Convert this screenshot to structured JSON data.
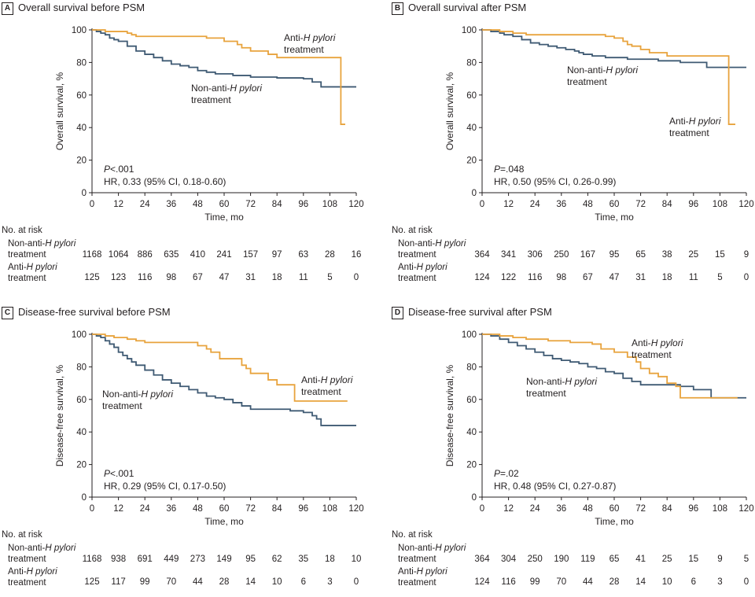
{
  "chart_data": [
    {
      "type": "line",
      "panel_letter": "A",
      "title": "Overall survival before PSM",
      "xlabel": "Time, mo",
      "ylabel": "Overall survival, %",
      "xlim": [
        0,
        120
      ],
      "ylim": [
        0,
        100
      ],
      "xticks": [
        "0",
        "12",
        "24",
        "36",
        "48",
        "60",
        "72",
        "84",
        "96",
        "108",
        "120"
      ],
      "yticks": [
        "0",
        "20",
        "40",
        "60",
        "80",
        "100"
      ],
      "stats": {
        "p": "P<.001",
        "hr": "HR, 0.33 (95% CI, 0.18-0.60)"
      },
      "series": [
        {
          "name": "Non-anti-H pylori treatment",
          "label_line1_prefix": "Non-anti-",
          "label_line1_italic": "H pylori",
          "label_line2": "treatment",
          "color": "#3f5a73",
          "x": [
            0,
            2,
            4,
            6,
            8,
            10,
            12,
            16,
            20,
            24,
            28,
            32,
            36,
            40,
            44,
            48,
            52,
            56,
            60,
            64,
            68,
            72,
            78,
            84,
            90,
            96,
            100,
            102,
            104,
            108,
            112,
            120
          ],
          "y": [
            100,
            99,
            98,
            97,
            95,
            94,
            93,
            90,
            87,
            85,
            83,
            81,
            79,
            78,
            77,
            75,
            74,
            73,
            73,
            72,
            72,
            71,
            71,
            70.5,
            70.5,
            70,
            68,
            68,
            65,
            65,
            65,
            65
          ]
        },
        {
          "name": "Anti-H pylori treatment",
          "label_line1_prefix": "Anti-",
          "label_line1_italic": "H pylori",
          "label_line2": "treatment",
          "color": "#e8a33d",
          "x": [
            0,
            6,
            16,
            18,
            20,
            24,
            48,
            52,
            56,
            60,
            66,
            68,
            70,
            72,
            78,
            80,
            84,
            90,
            96,
            100,
            104,
            108,
            112,
            113,
            113,
            115
          ],
          "y": [
            100,
            99,
            98,
            97,
            96,
            96,
            96,
            95,
            95,
            93,
            91,
            89,
            89,
            87,
            87,
            85,
            83,
            83,
            83,
            83,
            83,
            83,
            83,
            83,
            42,
            42
          ]
        }
      ],
      "risk_table": {
        "title": "No. at risk",
        "rows": [
          {
            "label_prefix": "Non-anti-",
            "label_italic": "H pylori",
            "label_line2": "treatment",
            "values": [
              "1168",
              "1064",
              "886",
              "635",
              "410",
              "241",
              "157",
              "97",
              "63",
              "28",
              "16"
            ]
          },
          {
            "label_prefix": "Anti-",
            "label_italic": "H pylori",
            "label_line2": "treatment",
            "values": [
              "125",
              "123",
              "116",
              "98",
              "67",
              "47",
              "31",
              "18",
              "11",
              "5",
              "0"
            ]
          }
        ]
      }
    },
    {
      "type": "line",
      "panel_letter": "B",
      "title": "Overall survival after PSM",
      "xlabel": "Time, mo",
      "ylabel": "Overall survival, %",
      "xlim": [
        0,
        120
      ],
      "ylim": [
        0,
        100
      ],
      "xticks": [
        "0",
        "12",
        "24",
        "36",
        "48",
        "60",
        "72",
        "84",
        "96",
        "108",
        "120"
      ],
      "yticks": [
        "0",
        "20",
        "40",
        "60",
        "80",
        "100"
      ],
      "stats": {
        "p": "P=.048",
        "hr": "HR, 0.50 (95% CI, 0.26-0.99)"
      },
      "series": [
        {
          "name": "Non-anti-H pylori treatment",
          "label_line1_prefix": "Non-anti-",
          "label_line1_italic": "H pylori",
          "label_line2": "treatment",
          "color": "#3f5a73",
          "x": [
            0,
            4,
            8,
            10,
            14,
            18,
            22,
            26,
            30,
            34,
            38,
            42,
            44,
            46,
            50,
            54,
            56,
            60,
            66,
            72,
            80,
            84,
            90,
            96,
            100,
            102,
            108,
            112,
            120
          ],
          "y": [
            100,
            99,
            98,
            97,
            96,
            94,
            92,
            91,
            90,
            89,
            88,
            87,
            86,
            85,
            84,
            84,
            83,
            83,
            82,
            82,
            81,
            81,
            80,
            80,
            80,
            77,
            77,
            77,
            77
          ]
        },
        {
          "name": "Anti-H pylori treatment",
          "label_line1_prefix": "Anti-",
          "label_line1_italic": "H pylori",
          "label_line2": "treatment",
          "color": "#e8a33d",
          "x": [
            0,
            8,
            14,
            20,
            24,
            50,
            56,
            60,
            64,
            66,
            68,
            72,
            76,
            80,
            84,
            96,
            104,
            110,
            112,
            112,
            115
          ],
          "y": [
            100,
            99,
            98,
            97,
            97,
            97,
            96,
            95,
            93,
            91,
            90,
            88,
            86,
            86,
            84,
            84,
            84,
            84,
            84,
            42,
            42
          ]
        }
      ],
      "risk_table": {
        "title": "No. at risk",
        "rows": [
          {
            "label_prefix": "Non-anti-",
            "label_italic": "H pylori",
            "label_line2": "treatment",
            "values": [
              "364",
              "341",
              "306",
              "250",
              "167",
              "95",
              "65",
              "38",
              "25",
              "15",
              "9"
            ]
          },
          {
            "label_prefix": "Anti-",
            "label_italic": "H pylori",
            "label_line2": "treatment",
            "values": [
              "124",
              "122",
              "116",
              "98",
              "67",
              "47",
              "31",
              "18",
              "11",
              "5",
              "0"
            ]
          }
        ]
      }
    },
    {
      "type": "line",
      "panel_letter": "C",
      "title": "Disease-free survival before PSM",
      "xlabel": "Time, mo",
      "ylabel": "Disease-free survival, %",
      "xlim": [
        0,
        120
      ],
      "ylim": [
        0,
        100
      ],
      "xticks": [
        "0",
        "12",
        "24",
        "36",
        "48",
        "60",
        "72",
        "84",
        "96",
        "108",
        "120"
      ],
      "yticks": [
        "0",
        "20",
        "40",
        "60",
        "80",
        "100"
      ],
      "stats": {
        "p": "P<.001",
        "hr": "HR, 0.29 (95% CI, 0.17-0.50)"
      },
      "series": [
        {
          "name": "Non-anti-H pylori treatment",
          "label_line1_prefix": "Non-anti-",
          "label_line1_italic": "H pylori",
          "label_line2": "treatment",
          "color": "#3f5a73",
          "x": [
            0,
            2,
            4,
            6,
            8,
            10,
            12,
            14,
            16,
            18,
            20,
            24,
            28,
            32,
            36,
            40,
            44,
            48,
            52,
            56,
            60,
            64,
            68,
            72,
            78,
            84,
            90,
            96,
            100,
            102,
            104,
            108,
            112,
            120
          ],
          "y": [
            100,
            99,
            98,
            96,
            94,
            92,
            89,
            87,
            85,
            83,
            81,
            78,
            75,
            72,
            70,
            68,
            66,
            64,
            62,
            61,
            60,
            58,
            56,
            54,
            54,
            54,
            53,
            52,
            50,
            48,
            44,
            44,
            44,
            44
          ]
        },
        {
          "name": "Anti-H pylori treatment",
          "label_line1_prefix": "Anti-",
          "label_line1_italic": "H pylori",
          "label_line2": "treatment",
          "color": "#e8a33d",
          "x": [
            0,
            6,
            10,
            16,
            20,
            24,
            46,
            48,
            52,
            54,
            58,
            66,
            68,
            70,
            72,
            78,
            80,
            84,
            90,
            92,
            96,
            106,
            112,
            116
          ],
          "y": [
            100,
            99,
            98,
            97,
            96,
            95,
            95,
            93,
            91,
            89,
            85,
            85,
            81,
            79,
            76,
            76,
            72,
            69,
            69,
            59,
            59,
            59,
            59,
            59
          ]
        }
      ],
      "risk_table": {
        "title": "No. at risk",
        "rows": [
          {
            "label_prefix": "Non-anti-",
            "label_italic": "H pylori",
            "label_line2": "treatment",
            "values": [
              "1168",
              "938",
              "691",
              "449",
              "273",
              "149",
              "95",
              "62",
              "35",
              "18",
              "10"
            ]
          },
          {
            "label_prefix": "Anti-",
            "label_italic": "H pylori",
            "label_line2": "treatment",
            "values": [
              "125",
              "117",
              "99",
              "70",
              "44",
              "28",
              "14",
              "10",
              "6",
              "3",
              "0"
            ]
          }
        ]
      }
    },
    {
      "type": "line",
      "panel_letter": "D",
      "title": "Disease-free survival after PSM",
      "xlabel": "Time, mo",
      "ylabel": "Disease-free survival, %",
      "xlim": [
        0,
        120
      ],
      "ylim": [
        0,
        100
      ],
      "xticks": [
        "0",
        "12",
        "24",
        "36",
        "48",
        "60",
        "72",
        "84",
        "96",
        "108",
        "120"
      ],
      "yticks": [
        "0",
        "20",
        "40",
        "60",
        "80",
        "100"
      ],
      "stats": {
        "p": "P=.02",
        "hr": "HR, 0.48 (95% CI, 0.27-0.87)"
      },
      "series": [
        {
          "name": "Non-anti-H pylori treatment",
          "label_line1_prefix": "Non-anti-",
          "label_line1_italic": "H pylori",
          "label_line2": "treatment",
          "color": "#3f5a73",
          "x": [
            0,
            4,
            8,
            12,
            16,
            20,
            24,
            28,
            32,
            36,
            40,
            44,
            48,
            52,
            56,
            60,
            64,
            68,
            72,
            80,
            84,
            90,
            96,
            100,
            104,
            108,
            112,
            120
          ],
          "y": [
            100,
            99,
            97,
            95,
            93,
            91,
            89,
            87,
            85,
            84,
            83,
            82,
            80,
            79,
            77,
            76,
            73,
            71,
            69,
            69,
            69,
            68,
            66,
            66,
            61,
            61,
            61,
            61
          ]
        },
        {
          "name": "Anti-H pylori treatment",
          "label_line1_prefix": "Anti-",
          "label_line1_italic": "H pylori",
          "label_line2": "treatment",
          "color": "#e8a33d",
          "x": [
            0,
            8,
            14,
            20,
            24,
            30,
            36,
            40,
            48,
            50,
            54,
            60,
            64,
            66,
            70,
            72,
            76,
            80,
            84,
            86,
            88,
            90,
            96,
            104,
            112,
            116
          ],
          "y": [
            100,
            99,
            98,
            97,
            97,
            96,
            96,
            95,
            95,
            94,
            91,
            89,
            89,
            86,
            83,
            79,
            76,
            74,
            70,
            70,
            68,
            61,
            61,
            61,
            61,
            61
          ]
        }
      ],
      "risk_table": {
        "title": "No. at risk",
        "rows": [
          {
            "label_prefix": "Non-anti-",
            "label_italic": "H pylori",
            "label_line2": "treatment",
            "values": [
              "364",
              "304",
              "250",
              "190",
              "119",
              "65",
              "41",
              "25",
              "15",
              "9",
              "5"
            ]
          },
          {
            "label_prefix": "Anti-",
            "label_italic": "H pylori",
            "label_line2": "treatment",
            "values": [
              "124",
              "116",
              "99",
              "70",
              "44",
              "28",
              "14",
              "10",
              "6",
              "3",
              "0"
            ]
          }
        ]
      }
    }
  ]
}
